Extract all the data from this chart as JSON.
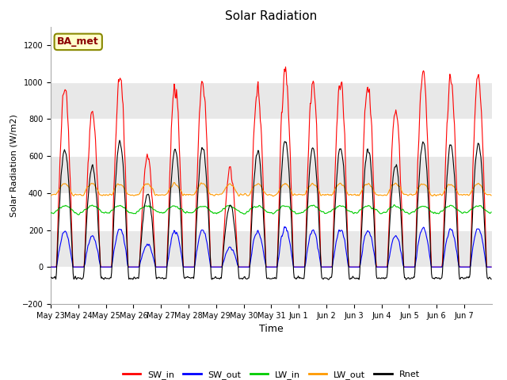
{
  "title": "Solar Radiation",
  "xlabel": "Time",
  "ylabel": "Solar Radiation (W/m2)",
  "ylim": [
    -200,
    1300
  ],
  "yticks": [
    -200,
    0,
    200,
    400,
    600,
    800,
    1000,
    1200
  ],
  "annotation": "BA_met",
  "background_color": "#ffffff",
  "plot_bg_color": "#ffffff",
  "band_color": "#e8e8e8",
  "line_colors": {
    "SW_in": "#ff0000",
    "SW_out": "#0000ff",
    "LW_in": "#00cc00",
    "LW_out": "#ff9900",
    "Rnet": "#000000"
  },
  "legend_labels": [
    "SW_in",
    "SW_out",
    "LW_in",
    "LW_out",
    "Rnet"
  ],
  "n_days": 16,
  "dt_hours": 0.5,
  "SW_in_peaks": [
    980,
    840,
    1040,
    600,
    980,
    990,
    520,
    960,
    1060,
    990,
    1000,
    990,
    850,
    1050,
    1020,
    1020
  ],
  "ticklabels": [
    "May 23",
    "May 24",
    "May 25",
    "May 26",
    "May 27",
    "May 28",
    "May 29",
    "May 30",
    "May 31",
    "Jun 1",
    "Jun 2",
    "Jun 3",
    "Jun 4",
    "Jun 5",
    "Jun 6",
    "Jun 7"
  ]
}
